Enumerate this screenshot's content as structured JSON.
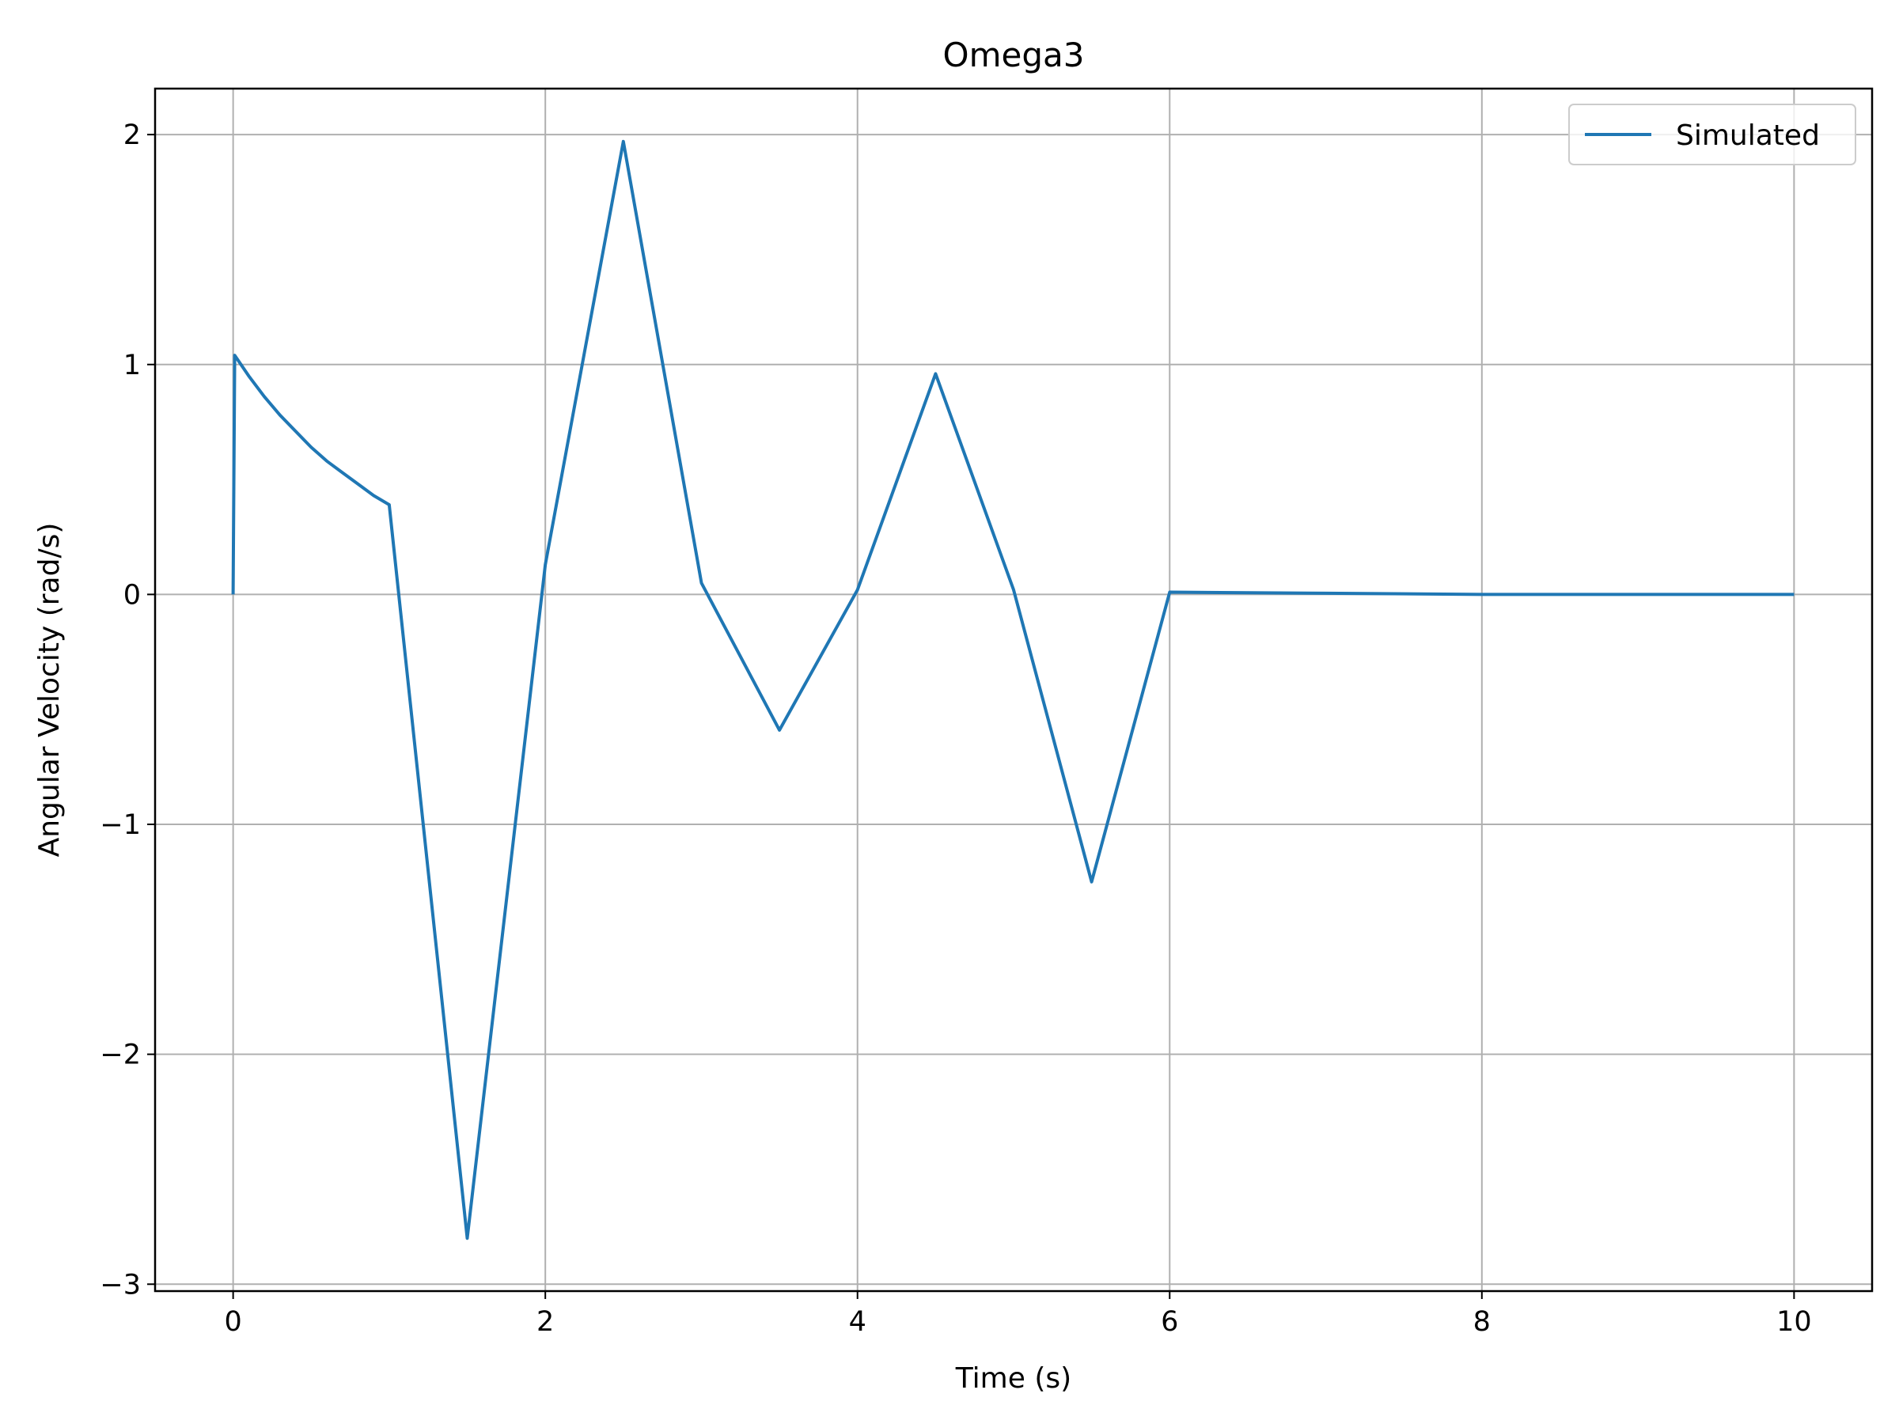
{
  "chart_data": {
    "type": "line",
    "title": "Omega3",
    "xlabel": "Time (s)",
    "ylabel": "Angular Velocity (rad/s)",
    "xlim": [
      -0.5,
      10.5
    ],
    "ylim": [
      -3.03,
      2.2
    ],
    "x_ticks": [
      0,
      2,
      4,
      6,
      8,
      10
    ],
    "x_tick_labels": [
      "0",
      "2",
      "4",
      "6",
      "8",
      "10"
    ],
    "y_ticks": [
      2,
      1,
      0,
      -1,
      -2,
      -3
    ],
    "y_tick_labels": [
      "2",
      "1",
      "0",
      "−1",
      "−2",
      "−3"
    ],
    "grid": true,
    "legend_position": "top-right",
    "series": [
      {
        "name": "Simulated",
        "color": "#1f77b4",
        "x": [
          0,
          0.01,
          0.1,
          0.2,
          0.3,
          0.4,
          0.5,
          0.6,
          0.7,
          0.8,
          0.9,
          1.0,
          1.5,
          2.0,
          2.5,
          3.0,
          3.5,
          4.0,
          4.5,
          5.0,
          5.5,
          6.0,
          7.0,
          8.0,
          9.0,
          10.0
        ],
        "y": [
          0,
          1.04,
          0.95,
          0.86,
          0.78,
          0.71,
          0.64,
          0.58,
          0.53,
          0.48,
          0.43,
          0.39,
          -2.8,
          0.13,
          1.97,
          0.05,
          -0.59,
          0.02,
          0.96,
          0.02,
          -1.25,
          0.01,
          0.005,
          0.0,
          0.0,
          0.0
        ]
      }
    ]
  }
}
